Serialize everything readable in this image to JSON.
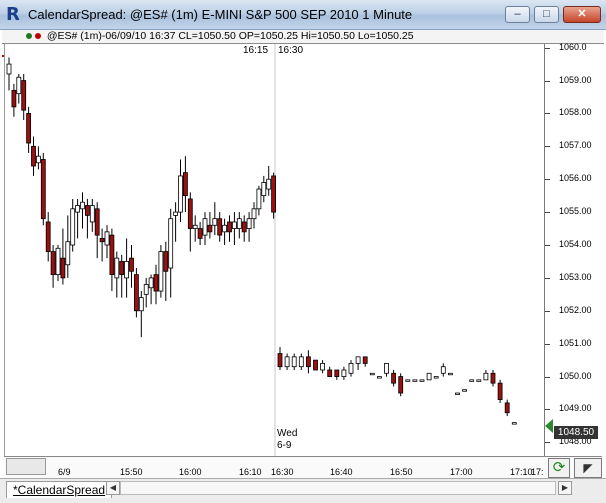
{
  "window": {
    "title": "CalendarSpread: @ES# (1m) E-MINI S&P 500 SEP 2010 1 Minute",
    "minimize": "–",
    "maximize": "□",
    "close": "✕"
  },
  "infobar": {
    "text": "@ES# (1m)-06/09/10 16:37 CL=1050.50 OP=1050.25 Hi=1050.50 Lo=1050.25",
    "colors": {
      "up_dot": "#1f7a1f",
      "down_dot": "#c00000"
    }
  },
  "chart": {
    "time_markers": [
      "16:15",
      "16:30"
    ],
    "day_label": {
      "day": "Wed",
      "date": "6-9"
    },
    "current_price": "1048.50",
    "colors": {
      "down_candle": "#9b1111",
      "up_candle": "#ffffff",
      "outline": "#000000",
      "accent": "#2c8a2c"
    }
  },
  "chart_data": {
    "type": "candlestick",
    "yticks": [
      "1060.0",
      "1059.00",
      "1058.00",
      "1057.00",
      "1056.00",
      "1055.00",
      "1054.00",
      "1053.00",
      "1052.00",
      "1051.00",
      "1050.00",
      "1049.00",
      "1048.00"
    ],
    "ylim": [
      1047.95,
      1060.05
    ],
    "xticks": [
      {
        "label": "6/9",
        "idx": 14
      },
      {
        "label": "15:50",
        "idx": 30
      },
      {
        "label": "16:00",
        "idx": 42
      },
      {
        "label": "16:10",
        "idx": 53
      },
      {
        "label": "16:30",
        "idx": 64
      },
      {
        "label": "16:40",
        "idx": 77
      },
      {
        "label": "16:50",
        "idx": 90
      },
      {
        "label": "17:00",
        "idx": 102
      },
      {
        "label": "17:10",
        "idx": 113
      },
      {
        "label": "17:",
        "idx": 119
      }
    ],
    "candles": [
      [
        0,
        1059.2,
        1059.5,
        1058.7,
        1059.7
      ],
      [
        1,
        1058.7,
        1058.2,
        1057.9,
        1058.9
      ],
      [
        2,
        1058.6,
        1059.1,
        1058.3,
        1059.2
      ],
      [
        3,
        1059.0,
        1058.1,
        1057.8,
        1059.2
      ],
      [
        4,
        1058.0,
        1057.1,
        1056.8,
        1058.2
      ],
      [
        5,
        1057.0,
        1056.4,
        1056.1,
        1057.3
      ],
      [
        6,
        1056.5,
        1056.7,
        1056.3,
        1057.0
      ],
      [
        7,
        1056.6,
        1054.8,
        1054.6,
        1056.8
      ],
      [
        8,
        1054.7,
        1053.8,
        1053.5,
        1055.0
      ],
      [
        9,
        1053.8,
        1053.1,
        1052.7,
        1054.0
      ],
      [
        10,
        1053.1,
        1053.9,
        1052.9,
        1054.0
      ],
      [
        11,
        1053.6,
        1053.0,
        1052.8,
        1054.5
      ],
      [
        12,
        1053.4,
        1054.1,
        1053.0,
        1054.9
      ],
      [
        13,
        1054.0,
        1055.1,
        1053.8,
        1055.4
      ],
      [
        14,
        1055.0,
        1055.2,
        1054.2,
        1055.4
      ],
      [
        15,
        1055.1,
        1055.3,
        1054.5,
        1055.6
      ],
      [
        16,
        1055.2,
        1054.9,
        1054.2,
        1055.4
      ],
      [
        17,
        1054.7,
        1055.2,
        1054.4,
        1055.4
      ],
      [
        18,
        1055.1,
        1054.3,
        1053.6,
        1055.3
      ],
      [
        19,
        1054.2,
        1054.1,
        1053.5,
        1054.5
      ],
      [
        20,
        1054.0,
        1054.4,
        1053.6,
        1054.6
      ],
      [
        21,
        1054.3,
        1053.1,
        1052.6,
        1054.5
      ],
      [
        22,
        1053.0,
        1053.6,
        1052.4,
        1053.8
      ],
      [
        23,
        1053.5,
        1053.1,
        1052.4,
        1053.7
      ],
      [
        24,
        1053.0,
        1053.5,
        1052.4,
        1054.2
      ],
      [
        25,
        1053.6,
        1053.2,
        1052.7,
        1054.0
      ],
      [
        26,
        1053.1,
        1052.0,
        1051.8,
        1053.3
      ],
      [
        27,
        1052.0,
        1052.4,
        1051.2,
        1052.6
      ],
      [
        28,
        1052.5,
        1052.8,
        1052.1,
        1053.0
      ],
      [
        29,
        1052.7,
        1053.0,
        1052.2,
        1053.1
      ],
      [
        30,
        1053.1,
        1052.6,
        1052.2,
        1053.4
      ],
      [
        31,
        1052.6,
        1053.8,
        1052.4,
        1054.0
      ],
      [
        32,
        1053.8,
        1053.2,
        1052.3,
        1054.1
      ],
      [
        33,
        1053.3,
        1054.8,
        1052.4,
        1055.1
      ],
      [
        34,
        1054.9,
        1055.0,
        1054.1,
        1055.3
      ],
      [
        35,
        1055.0,
        1056.1,
        1054.7,
        1056.6
      ],
      [
        36,
        1056.2,
        1055.5,
        1055.0,
        1056.7
      ],
      [
        37,
        1055.4,
        1054.5,
        1053.8,
        1055.6
      ],
      [
        38,
        1054.5,
        1054.6,
        1054.1,
        1054.9
      ],
      [
        39,
        1054.5,
        1054.2,
        1054.0,
        1054.7
      ],
      [
        40,
        1054.3,
        1054.8,
        1054.0,
        1055.0
      ],
      [
        41,
        1054.6,
        1054.4,
        1054.2,
        1055.0
      ],
      [
        42,
        1054.6,
        1054.8,
        1054.3,
        1055.3
      ],
      [
        43,
        1054.8,
        1054.3,
        1054.1,
        1055.0
      ],
      [
        44,
        1054.4,
        1054.6,
        1054.0,
        1054.8
      ],
      [
        45,
        1054.7,
        1054.4,
        1054.1,
        1054.9
      ],
      [
        46,
        1054.5,
        1054.7,
        1054.0,
        1055.0
      ],
      [
        47,
        1054.5,
        1054.8,
        1054.2,
        1055.0
      ],
      [
        48,
        1054.7,
        1054.4,
        1054.1,
        1054.9
      ],
      [
        49,
        1054.5,
        1054.8,
        1054.1,
        1055.0
      ],
      [
        50,
        1054.8,
        1055.1,
        1054.5,
        1055.3
      ],
      [
        51,
        1055.1,
        1055.7,
        1054.9,
        1055.8
      ],
      [
        52,
        1055.5,
        1055.9,
        1055.3,
        1056.1
      ],
      [
        53,
        1055.7,
        1056.0,
        1055.5,
        1056.4
      ],
      [
        54,
        1056.1,
        1055.0,
        1054.8,
        1056.2
      ],
      [
        55,
        1050.7,
        1050.3,
        1050.2,
        1050.9
      ],
      [
        56,
        1050.3,
        1050.6,
        1050.2,
        1050.7
      ],
      [
        57,
        1050.3,
        1050.6,
        1050.2,
        1050.7
      ],
      [
        58,
        1050.3,
        1050.6,
        1050.2,
        1050.7
      ],
      [
        59,
        1050.6,
        1050.3,
        1050.1,
        1050.8
      ],
      [
        60,
        1050.5,
        1050.2,
        1050.2,
        1050.5
      ],
      [
        61,
        1050.2,
        1050.4,
        1050.1,
        1050.5
      ],
      [
        62,
        1050.2,
        1050.0,
        1050.0,
        1050.3
      ],
      [
        63,
        1050.2,
        1050.0,
        1049.9,
        1050.2
      ],
      [
        64,
        1050.0,
        1050.2,
        1049.9,
        1050.3
      ],
      [
        65,
        1050.1,
        1050.4,
        1050.0,
        1050.5
      ],
      [
        66,
        1050.4,
        1050.6,
        1050.2,
        1050.6
      ],
      [
        67,
        1050.6,
        1050.4,
        1050.3,
        1050.6
      ],
      [
        68,
        1050.1,
        1050.1,
        1050.1,
        1050.1
      ],
      [
        69,
        1050.0,
        1050.0,
        1050.0,
        1050.0
      ],
      [
        70,
        1050.1,
        1050.4,
        1050.0,
        1050.4
      ],
      [
        71,
        1050.1,
        1049.8,
        1049.7,
        1050.2
      ],
      [
        72,
        1050.0,
        1049.5,
        1049.4,
        1050.1
      ],
      [
        73,
        1049.9,
        1049.9,
        1049.9,
        1049.9
      ],
      [
        74,
        1049.9,
        1049.9,
        1049.9,
        1049.9
      ],
      [
        75,
        1049.9,
        1049.9,
        1049.9,
        1049.9
      ],
      [
        76,
        1049.9,
        1050.1,
        1049.9,
        1050.1
      ],
      [
        77,
        1050.0,
        1050.0,
        1050.0,
        1050.0
      ],
      [
        78,
        1050.1,
        1050.3,
        1050.0,
        1050.4
      ],
      [
        79,
        1050.1,
        1050.1,
        1050.1,
        1050.1
      ],
      [
        80,
        1049.5,
        1049.5,
        1049.5,
        1049.5
      ],
      [
        81,
        1049.6,
        1049.6,
        1049.6,
        1049.6
      ],
      [
        82,
        1049.9,
        1049.9,
        1049.9,
        1049.9
      ],
      [
        83,
        1049.9,
        1049.9,
        1049.9,
        1049.9
      ],
      [
        84,
        1049.9,
        1050.1,
        1049.9,
        1050.2
      ],
      [
        85,
        1050.1,
        1049.8,
        1049.7,
        1050.2
      ],
      [
        86,
        1049.8,
        1049.3,
        1049.2,
        1049.9
      ],
      [
        87,
        1049.2,
        1048.9,
        1048.8,
        1049.3
      ],
      [
        88,
        1048.6,
        1048.6,
        1048.6,
        1048.6
      ]
    ],
    "xticks_px": [
      64,
      126,
      185,
      245,
      277,
      336,
      396,
      456,
      516,
      537
    ]
  },
  "tabs": {
    "active": "*CalendarSpread",
    "left": "◀",
    "right": "▶"
  },
  "controls": {
    "refresh_icon": "⟳",
    "zoom_icon": "◤"
  }
}
